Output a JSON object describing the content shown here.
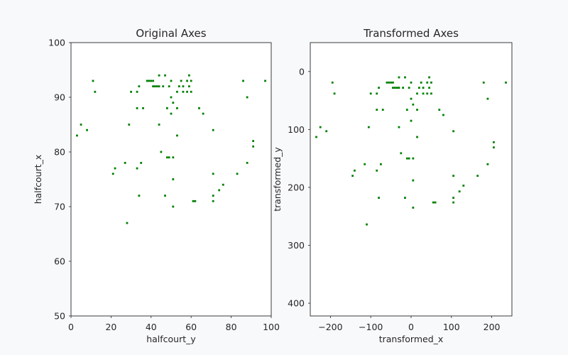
{
  "figure": {
    "background": "#f8f9fb",
    "axes_facecolor": "#ffffff",
    "axes_edgecolor": "#262626",
    "text_color": "#262626"
  },
  "chart_data": [
    {
      "type": "scatter",
      "title": "Original Axes",
      "xlabel": "halfcourt_y",
      "ylabel": "halfcourt_x",
      "xlim": [
        0,
        100
      ],
      "ylim": [
        50,
        100
      ],
      "y_inverted": false,
      "grid": false,
      "marker_color": "#008000",
      "xticks": [
        0,
        20,
        40,
        60,
        80,
        100
      ],
      "xtick_labels": [
        "0",
        "20",
        "40",
        "60",
        "80",
        "100"
      ],
      "yticks": [
        50,
        60,
        70,
        80,
        90,
        100
      ],
      "ytick_labels": [
        "50",
        "60",
        "70",
        "80",
        "90",
        "100"
      ],
      "points": [
        [
          3,
          83
        ],
        [
          5,
          85
        ],
        [
          8,
          84
        ],
        [
          11,
          93
        ],
        [
          12,
          91
        ],
        [
          21,
          76
        ],
        [
          22,
          77
        ],
        [
          27,
          78
        ],
        [
          28,
          67
        ],
        [
          29,
          85
        ],
        [
          30,
          91
        ],
        [
          33,
          88
        ],
        [
          33,
          91
        ],
        [
          33,
          77
        ],
        [
          34,
          72
        ],
        [
          35,
          78
        ],
        [
          36,
          88
        ],
        [
          34,
          92
        ],
        [
          38,
          93
        ],
        [
          39,
          93
        ],
        [
          40,
          93
        ],
        [
          41,
          93
        ],
        [
          41,
          92
        ],
        [
          42,
          92
        ],
        [
          43,
          92
        ],
        [
          44,
          92
        ],
        [
          44,
          94
        ],
        [
          44,
          85
        ],
        [
          45,
          80
        ],
        [
          46,
          92
        ],
        [
          47,
          94
        ],
        [
          47,
          72
        ],
        [
          48,
          88
        ],
        [
          48,
          79
        ],
        [
          49,
          92
        ],
        [
          49,
          79
        ],
        [
          50,
          93
        ],
        [
          50,
          87
        ],
        [
          50,
          90
        ],
        [
          51,
          89
        ],
        [
          51,
          79
        ],
        [
          51,
          75
        ],
        [
          51,
          70
        ],
        [
          53,
          91
        ],
        [
          53,
          88
        ],
        [
          53,
          83
        ],
        [
          54,
          92
        ],
        [
          55,
          93
        ],
        [
          56,
          91
        ],
        [
          56,
          92
        ],
        [
          58,
          91
        ],
        [
          58,
          93
        ],
        [
          59,
          94
        ],
        [
          59,
          92
        ],
        [
          60,
          93
        ],
        [
          60,
          91
        ],
        [
          61,
          71
        ],
        [
          62,
          71
        ],
        [
          64,
          88
        ],
        [
          66,
          87
        ],
        [
          71,
          84
        ],
        [
          71,
          76
        ],
        [
          71,
          72
        ],
        [
          71,
          71
        ],
        [
          74,
          73
        ],
        [
          76,
          74
        ],
        [
          83,
          76
        ],
        [
          86,
          93
        ],
        [
          88,
          90
        ],
        [
          88,
          78
        ],
        [
          91,
          82
        ],
        [
          91,
          81
        ],
        [
          97,
          93
        ]
      ]
    },
    {
      "type": "scatter",
      "title": "Transformed Axes",
      "xlabel": "transformed_x",
      "ylabel": "transformed_y",
      "xlim": [
        -250,
        250
      ],
      "ylim": [
        -50,
        422
      ],
      "y_inverted": true,
      "grid": false,
      "marker_color": "#008000",
      "xticks": [
        -200,
        -100,
        0,
        100,
        200
      ],
      "xtick_labels": [
        "−200",
        "−100",
        "0",
        "100",
        "200"
      ],
      "yticks": [
        0,
        100,
        200,
        300,
        400
      ],
      "ytick_labels": [
        "0",
        "100",
        "200",
        "300",
        "400"
      ],
      "points": [
        [
          -235,
          113
        ],
        [
          -225,
          96
        ],
        [
          -210,
          103
        ],
        [
          -195,
          19
        ],
        [
          -190,
          38
        ],
        [
          -145,
          180
        ],
        [
          -140,
          171
        ],
        [
          -115,
          160
        ],
        [
          -110,
          264
        ],
        [
          -105,
          96
        ],
        [
          -100,
          38
        ],
        [
          -85,
          66
        ],
        [
          -85,
          38
        ],
        [
          -85,
          171
        ],
        [
          -80,
          218
        ],
        [
          -75,
          160
        ],
        [
          -70,
          66
        ],
        [
          -80,
          28
        ],
        [
          -60,
          19
        ],
        [
          -55,
          19
        ],
        [
          -50,
          19
        ],
        [
          -45,
          19
        ],
        [
          -45,
          28
        ],
        [
          -40,
          28
        ],
        [
          -35,
          28
        ],
        [
          -30,
          28
        ],
        [
          -30,
          10
        ],
        [
          -30,
          96
        ],
        [
          -25,
          141
        ],
        [
          -20,
          28
        ],
        [
          -15,
          10
        ],
        [
          -15,
          218
        ],
        [
          -10,
          66
        ],
        [
          -10,
          150
        ],
        [
          -5,
          28
        ],
        [
          -5,
          150
        ],
        [
          0,
          19
        ],
        [
          0,
          85
        ],
        [
          0,
          47
        ],
        [
          5,
          57
        ],
        [
          5,
          150
        ],
        [
          5,
          188
        ],
        [
          5,
          235
        ],
        [
          15,
          38
        ],
        [
          15,
          66
        ],
        [
          15,
          113
        ],
        [
          20,
          28
        ],
        [
          25,
          19
        ],
        [
          30,
          38
        ],
        [
          30,
          28
        ],
        [
          40,
          38
        ],
        [
          40,
          19
        ],
        [
          45,
          10
        ],
        [
          45,
          28
        ],
        [
          50,
          19
        ],
        [
          50,
          38
        ],
        [
          55,
          226
        ],
        [
          60,
          226
        ],
        [
          70,
          66
        ],
        [
          80,
          75
        ],
        [
          105,
          103
        ],
        [
          105,
          180
        ],
        [
          105,
          218
        ],
        [
          105,
          226
        ],
        [
          120,
          207
        ],
        [
          130,
          197
        ],
        [
          165,
          180
        ],
        [
          180,
          19
        ],
        [
          190,
          47
        ],
        [
          190,
          160
        ],
        [
          205,
          122
        ],
        [
          205,
          131
        ],
        [
          235,
          19
        ]
      ]
    }
  ]
}
